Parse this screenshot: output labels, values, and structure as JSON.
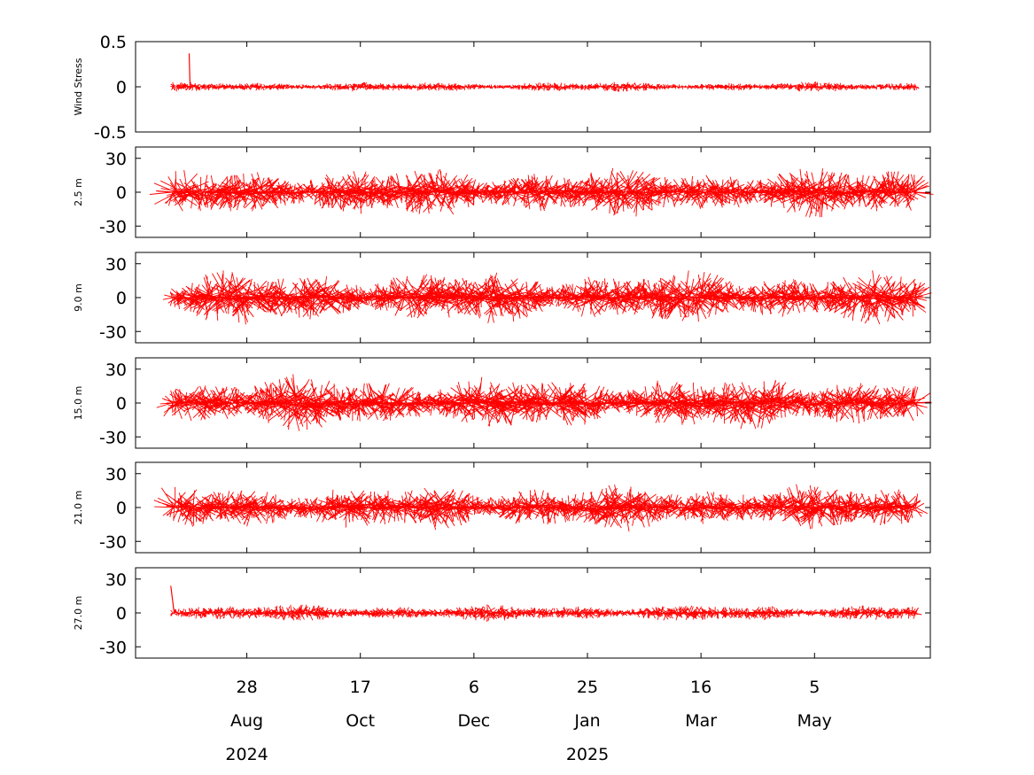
{
  "chart_data": {
    "type": "line",
    "subtype": "stick-vector",
    "series_color": "#ff0000",
    "x_axis": {
      "type": "date",
      "range": [
        "2024-07-10",
        "2025-06-25"
      ],
      "ticks": [
        {
          "date": "2024-08-28",
          "day": "28",
          "month": "Aug",
          "year": "2024"
        },
        {
          "date": "2024-10-17",
          "day": "17",
          "month": "Oct",
          "year": ""
        },
        {
          "date": "2024-12-06",
          "day": "6",
          "month": "Dec",
          "year": ""
        },
        {
          "date": "2025-01-25",
          "day": "25",
          "month": "Jan",
          "year": "2025"
        },
        {
          "date": "2025-03-16",
          "day": "16",
          "month": "Mar",
          "year": ""
        },
        {
          "date": "2025-05-05",
          "day": "5",
          "month": "May",
          "year": ""
        }
      ]
    },
    "panels": [
      {
        "ylabel": "Wind Stress",
        "ylim": [
          -0.5,
          0.5
        ],
        "yticks": [
          0.5,
          0,
          -0.5
        ],
        "ytick_labels": [
          "0.5",
          "0",
          "-0.5"
        ],
        "amplitude": 0.06,
        "peak": {
          "date": "2024-08-03",
          "u": -0.01,
          "v": 0.37
        },
        "seed": 11
      },
      {
        "ylabel": "2.5 m",
        "ylim": [
          -40,
          40
        ],
        "yticks": [
          30,
          0,
          -30
        ],
        "ytick_labels": [
          "30",
          "0",
          "-30"
        ],
        "amplitude": 24,
        "seed": 23
      },
      {
        "ylabel": "9.0 m",
        "ylim": [
          -40,
          40
        ],
        "yticks": [
          30,
          0,
          -30
        ],
        "ytick_labels": [
          "30",
          "0",
          "-30"
        ],
        "amplitude": 26,
        "seed": 37
      },
      {
        "ylabel": "15.0 m",
        "ylim": [
          -40,
          40
        ],
        "yticks": [
          30,
          0,
          -30
        ],
        "ytick_labels": [
          "30",
          "0",
          "-30"
        ],
        "amplitude": 26,
        "seed": 51
      },
      {
        "ylabel": "21.0 m",
        "ylim": [
          -40,
          40
        ],
        "yticks": [
          30,
          0,
          -30
        ],
        "ytick_labels": [
          "30",
          "0",
          "-30"
        ],
        "amplitude": 22,
        "seed": 67
      },
      {
        "ylabel": "27.0 m",
        "ylim": [
          -40,
          40
        ],
        "yticks": [
          30,
          0,
          -30
        ],
        "ytick_labels": [
          "30",
          "0",
          "-30"
        ],
        "amplitude": 8,
        "peak": {
          "date": "2024-07-27",
          "u": -3,
          "v": 24
        },
        "seed": 83
      }
    ],
    "data_start": "2024-07-26",
    "data_end": "2025-06-19",
    "samples_per_day": 6
  }
}
